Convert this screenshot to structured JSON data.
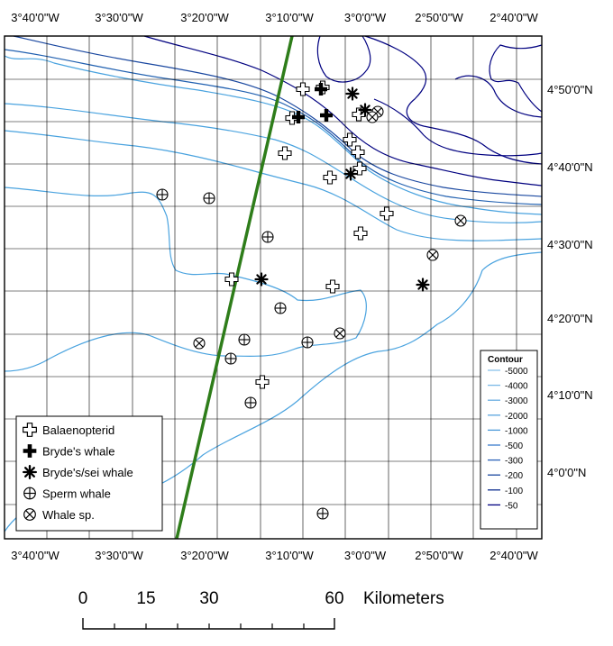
{
  "map": {
    "lon_labels": [
      "3°40'0\"W",
      "3°30'0\"W",
      "3°20'0\"W",
      "3°10'0\"W",
      "3°0'0\"W",
      "2°50'0\"W",
      "2°40'0\"W"
    ],
    "lat_labels": [
      "4°50'0\"N",
      "4°40'0\"N",
      "4°30'0\"N",
      "4°20'0\"N",
      "4°10'0\"N",
      "4°0'0\"N"
    ],
    "colors": {
      "grid": "#000000",
      "transect": "#2e7d1a",
      "contour_shallow": "#000080",
      "contour_deep": "#4aa3df"
    }
  },
  "legend": {
    "items": [
      {
        "label": "Balaenopterid",
        "symbol": "open-cross"
      },
      {
        "label": "Bryde's whale",
        "symbol": "filled-cross"
      },
      {
        "label": "Bryde's/sei whale",
        "symbol": "asterisk"
      },
      {
        "label": "Sperm whale",
        "symbol": "circle-plus"
      },
      {
        "label": "Whale sp.",
        "symbol": "circle-x"
      }
    ]
  },
  "contour_legend": {
    "title": "Contour",
    "items": [
      "-5000",
      "-4000",
      "-3000",
      "-2000",
      "-1000",
      "-500",
      "-300",
      "-200",
      "-100",
      "-50"
    ]
  },
  "scale_bar": {
    "ticks": [
      "0",
      "15",
      "30",
      "60"
    ],
    "unit": "Kilometers"
  },
  "sightings": {
    "balaenopterid": [
      [
        336,
        99
      ],
      [
        358,
        97
      ],
      [
        324,
        131
      ],
      [
        398,
        127
      ],
      [
        316,
        170
      ],
      [
        388,
        155
      ],
      [
        366,
        197
      ],
      [
        397,
        169
      ],
      [
        399,
        187
      ],
      [
        429,
        237
      ],
      [
        400,
        259
      ],
      [
        257,
        310
      ],
      [
        369,
        318
      ],
      [
        291,
        424
      ]
    ],
    "brydes": [
      [
        331,
        130
      ],
      [
        356,
        99
      ],
      [
        362,
        128
      ]
    ],
    "brydes_sei": [
      [
        391,
        104
      ],
      [
        405,
        122
      ],
      [
        389,
        193
      ],
      [
        290,
        310
      ],
      [
        469,
        316
      ]
    ],
    "sperm": [
      [
        180,
        216
      ],
      [
        232,
        220
      ],
      [
        297,
        263
      ],
      [
        311,
        342
      ],
      [
        271,
        377
      ],
      [
        256,
        398
      ],
      [
        341,
        380
      ],
      [
        278,
        447
      ],
      [
        358,
        570
      ]
    ],
    "whale_sp": [
      [
        419,
        124
      ],
      [
        413,
        130
      ],
      [
        511,
        245
      ],
      [
        480,
        283
      ],
      [
        377,
        370
      ],
      [
        221,
        381
      ]
    ]
  }
}
